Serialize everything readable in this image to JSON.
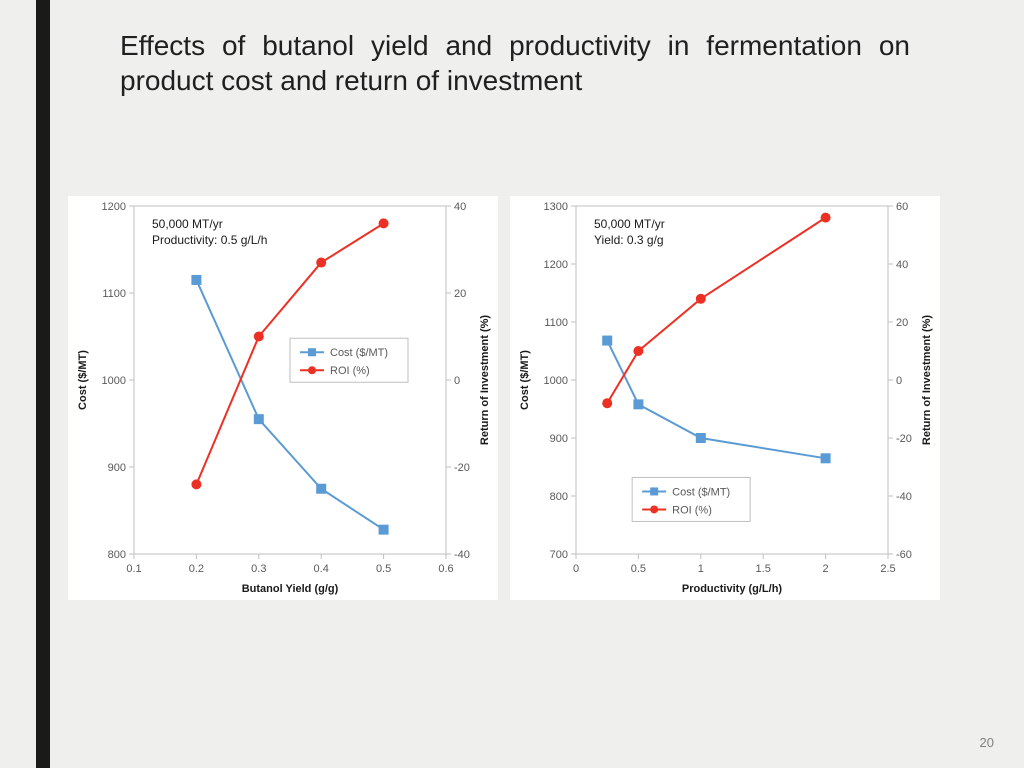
{
  "title": "Effects of butanol yield and productivity in fermentation on product cost and return of investment",
  "page_number": "20",
  "colors": {
    "cost": "#5b9bd5",
    "roi": "#ed3024",
    "axis": "#bfbfbf",
    "text": "#595959",
    "panel_bg": "#ffffff",
    "page_bg": "#efefed",
    "bar": "#1a1a1a"
  },
  "marker_size": 5,
  "line_width": 2,
  "font": "Segoe UI, Arial, sans-serif",
  "chart1": {
    "type": "dual-axis line/scatter",
    "annotation": [
      "50,000 MT/yr",
      "Productivity: 0.5 g/L/h"
    ],
    "xlabel": "Butanol Yield (g/g)",
    "ylabel_left": "Cost ($/MT)",
    "ylabel_right": "Return of Investment (%)",
    "xlim": [
      0.1,
      0.6
    ],
    "xticks": [
      0.1,
      0.2,
      0.3,
      0.4,
      0.5,
      0.6
    ],
    "ylim_left": [
      800,
      1200
    ],
    "yticks_left": [
      800,
      900,
      1000,
      1100,
      1200
    ],
    "ylim_right": [
      -40,
      40
    ],
    "yticks_right": [
      -40,
      -20,
      0,
      20,
      40
    ],
    "x": [
      0.2,
      0.3,
      0.4,
      0.5
    ],
    "cost": [
      1115,
      955,
      875,
      828
    ],
    "roi": [
      -24,
      10,
      27,
      36
    ],
    "legend": {
      "cost": "Cost ($/MT)",
      "roi": "ROI (%)"
    },
    "legend_pos": "middle-right",
    "cost_marker": "square",
    "roi_marker": "circle"
  },
  "chart2": {
    "type": "dual-axis line/scatter",
    "annotation": [
      "50,000 MT/yr",
      "Yield: 0.3 g/g"
    ],
    "xlabel": "Productivity (g/L/h)",
    "ylabel_left": "Cost ($/MT)",
    "ylabel_right": "Return of Investment (%)",
    "xlim": [
      0,
      2.5
    ],
    "xticks": [
      0,
      0.5,
      1,
      1.5,
      2,
      2.5
    ],
    "ylim_left": [
      700,
      1300
    ],
    "yticks_left": [
      700,
      800,
      900,
      1000,
      1100,
      1200,
      1300
    ],
    "ylim_right": [
      -60,
      60
    ],
    "yticks_right": [
      -60,
      -40,
      -20,
      0,
      20,
      40,
      60
    ],
    "x": [
      0.25,
      0.5,
      1.0,
      2.0
    ],
    "cost": [
      1068,
      958,
      900,
      865
    ],
    "roi": [
      -8,
      10,
      28,
      56
    ],
    "legend": {
      "cost": "Cost ($/MT)",
      "roi": "ROI (%)"
    },
    "legend_pos": "bottom-left",
    "cost_marker": "square",
    "roi_marker": "circle"
  }
}
